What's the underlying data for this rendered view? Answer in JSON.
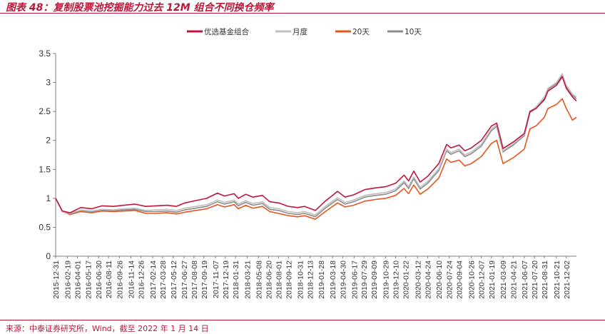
{
  "header": {
    "title": "图表 48：复制股票池挖掘能力过去 12M 组合不同换仓频率"
  },
  "footer": {
    "source": "来源：中泰证券研究所，Wind，截至 2022 年 1 月 14 日"
  },
  "chart_data": {
    "type": "line",
    "title": "",
    "xlabel": "",
    "ylabel": "",
    "ylim": [
      0,
      3.5
    ],
    "yticks": [
      "0",
      "0.5",
      "1",
      "1.5",
      "2",
      "2.5",
      "3",
      "3.5"
    ],
    "x_range": [
      "2015-12-31",
      "2022-01-14"
    ],
    "xticks": [
      "2015-12-31",
      "2016-02-19",
      "2016-04-01",
      "2016-05-17",
      "2016-06-30",
      "2016-08-11",
      "2016-09-26",
      "2016-11-14",
      "2016-12-26",
      "2017-02-14",
      "2017-03-28",
      "2017-05-12",
      "2017-06-27",
      "2017-08-08",
      "2017-09-19",
      "2017-11-07",
      "2017-12-19",
      "2018-01-31",
      "2018-03-21",
      "2018-05-08",
      "2018-06-20",
      "2018-08-01",
      "2018-09-12",
      "2018-10-31",
      "2018-12-13",
      "2019-01-28",
      "2019-03-18",
      "2019-04-30",
      "2019-06-17",
      "2019-07-29",
      "2019-09-09",
      "2019-10-29",
      "2019-12-10",
      "2020-01-22",
      "2020-03-12",
      "2020-04-24",
      "2020-06-10",
      "2020-07-24",
      "2020-09-04",
      "2020-10-26",
      "2020-12-07",
      "2021-01-19",
      "2021-03-09",
      "2021-04-21",
      "2021-06-07",
      "2021-07-20",
      "2021-08-31",
      "2021-10-21",
      "2021-12-02"
    ],
    "grid": false,
    "legend_position": "top-center",
    "series": [
      {
        "name": "优选基金组合",
        "color": "#c0143c",
        "points": [
          [
            "2015-12-31",
            1.0
          ],
          [
            "2016-01-28",
            0.78
          ],
          [
            "2016-03-01",
            0.75
          ],
          [
            "2016-04-15",
            0.84
          ],
          [
            "2016-06-01",
            0.82
          ],
          [
            "2016-07-15",
            0.87
          ],
          [
            "2016-09-01",
            0.86
          ],
          [
            "2016-10-15",
            0.88
          ],
          [
            "2016-11-30",
            0.9
          ],
          [
            "2017-01-16",
            0.86
          ],
          [
            "2017-03-01",
            0.87
          ],
          [
            "2017-04-15",
            0.88
          ],
          [
            "2017-05-25",
            0.86
          ],
          [
            "2017-07-01",
            0.92
          ],
          [
            "2017-08-15",
            0.96
          ],
          [
            "2017-10-01",
            1.0
          ],
          [
            "2017-11-15",
            1.09
          ],
          [
            "2017-12-15",
            1.04
          ],
          [
            "2018-01-25",
            1.08
          ],
          [
            "2018-02-12",
            1.0
          ],
          [
            "2018-03-15",
            1.07
          ],
          [
            "2018-04-15",
            1.02
          ],
          [
            "2018-05-25",
            1.05
          ],
          [
            "2018-06-25",
            0.94
          ],
          [
            "2018-08-01",
            0.92
          ],
          [
            "2018-09-12",
            0.86
          ],
          [
            "2018-10-20",
            0.84
          ],
          [
            "2018-11-20",
            0.86
          ],
          [
            "2019-01-04",
            0.79
          ],
          [
            "2019-02-15",
            0.95
          ],
          [
            "2019-04-08",
            1.12
          ],
          [
            "2019-05-10",
            1.02
          ],
          [
            "2019-06-15",
            1.06
          ],
          [
            "2019-08-01",
            1.15
          ],
          [
            "2019-09-15",
            1.18
          ],
          [
            "2019-10-29",
            1.2
          ],
          [
            "2019-12-10",
            1.26
          ],
          [
            "2020-01-15",
            1.4
          ],
          [
            "2020-02-03",
            1.3
          ],
          [
            "2020-02-25",
            1.47
          ],
          [
            "2020-03-23",
            1.28
          ],
          [
            "2020-04-24",
            1.38
          ],
          [
            "2020-06-10",
            1.6
          ],
          [
            "2020-07-13",
            1.93
          ],
          [
            "2020-07-31",
            1.87
          ],
          [
            "2020-09-04",
            1.92
          ],
          [
            "2020-09-28",
            1.82
          ],
          [
            "2020-10-26",
            1.87
          ],
          [
            "2020-12-07",
            2.0
          ],
          [
            "2021-01-19",
            2.25
          ],
          [
            "2021-02-10",
            2.3
          ],
          [
            "2021-03-09",
            1.86
          ],
          [
            "2021-04-21",
            1.97
          ],
          [
            "2021-06-07",
            2.12
          ],
          [
            "2021-07-01",
            2.5
          ],
          [
            "2021-07-27",
            2.55
          ],
          [
            "2021-08-31",
            2.7
          ],
          [
            "2021-09-15",
            2.85
          ],
          [
            "2021-10-21",
            2.95
          ],
          [
            "2021-11-15",
            3.1
          ],
          [
            "2021-12-02",
            2.9
          ],
          [
            "2021-12-28",
            2.75
          ],
          [
            "2022-01-14",
            2.68
          ]
        ]
      },
      {
        "name": "月度",
        "color": "#bfbfbf",
        "points": [
          [
            "2015-12-31",
            1.0
          ],
          [
            "2016-01-28",
            0.78
          ],
          [
            "2016-03-01",
            0.74
          ],
          [
            "2016-04-15",
            0.8
          ],
          [
            "2016-06-01",
            0.78
          ],
          [
            "2016-07-15",
            0.81
          ],
          [
            "2016-09-01",
            0.8
          ],
          [
            "2016-10-15",
            0.82
          ],
          [
            "2016-11-30",
            0.83
          ],
          [
            "2017-01-16",
            0.79
          ],
          [
            "2017-03-01",
            0.8
          ],
          [
            "2017-04-15",
            0.81
          ],
          [
            "2017-05-25",
            0.79
          ],
          [
            "2017-07-01",
            0.83
          ],
          [
            "2017-08-15",
            0.86
          ],
          [
            "2017-10-01",
            0.89
          ],
          [
            "2017-11-15",
            0.97
          ],
          [
            "2017-12-15",
            0.93
          ],
          [
            "2018-01-25",
            0.97
          ],
          [
            "2018-02-12",
            0.9
          ],
          [
            "2018-03-15",
            0.96
          ],
          [
            "2018-04-15",
            0.91
          ],
          [
            "2018-05-25",
            0.94
          ],
          [
            "2018-06-25",
            0.84
          ],
          [
            "2018-08-01",
            0.82
          ],
          [
            "2018-09-12",
            0.77
          ],
          [
            "2018-10-20",
            0.75
          ],
          [
            "2018-11-20",
            0.77
          ],
          [
            "2019-01-04",
            0.71
          ],
          [
            "2019-02-15",
            0.86
          ],
          [
            "2019-04-08",
            1.01
          ],
          [
            "2019-05-10",
            0.93
          ],
          [
            "2019-06-15",
            0.97
          ],
          [
            "2019-08-01",
            1.05
          ],
          [
            "2019-09-15",
            1.08
          ],
          [
            "2019-10-29",
            1.1
          ],
          [
            "2019-12-10",
            1.16
          ],
          [
            "2020-01-15",
            1.3
          ],
          [
            "2020-02-03",
            1.2
          ],
          [
            "2020-02-25",
            1.37
          ],
          [
            "2020-03-23",
            1.19
          ],
          [
            "2020-04-24",
            1.29
          ],
          [
            "2020-06-10",
            1.51
          ],
          [
            "2020-07-13",
            1.85
          ],
          [
            "2020-07-31",
            1.79
          ],
          [
            "2020-09-04",
            1.85
          ],
          [
            "2020-09-28",
            1.75
          ],
          [
            "2020-10-26",
            1.8
          ],
          [
            "2020-12-07",
            1.93
          ],
          [
            "2021-01-19",
            2.2
          ],
          [
            "2021-02-10",
            2.27
          ],
          [
            "2021-03-09",
            1.82
          ],
          [
            "2021-04-21",
            1.94
          ],
          [
            "2021-06-07",
            2.1
          ],
          [
            "2021-07-01",
            2.5
          ],
          [
            "2021-07-27",
            2.58
          ],
          [
            "2021-08-31",
            2.75
          ],
          [
            "2021-09-15",
            2.9
          ],
          [
            "2021-10-21",
            3.0
          ],
          [
            "2021-11-15",
            3.15
          ],
          [
            "2021-12-02",
            2.95
          ],
          [
            "2021-12-28",
            2.8
          ],
          [
            "2022-01-14",
            2.75
          ]
        ]
      },
      {
        "name": "20天",
        "color": "#e8541e",
        "points": [
          [
            "2015-12-31",
            1.0
          ],
          [
            "2016-01-28",
            0.78
          ],
          [
            "2016-03-01",
            0.72
          ],
          [
            "2016-04-15",
            0.77
          ],
          [
            "2016-06-01",
            0.75
          ],
          [
            "2016-07-15",
            0.78
          ],
          [
            "2016-09-01",
            0.77
          ],
          [
            "2016-10-15",
            0.78
          ],
          [
            "2016-11-30",
            0.79
          ],
          [
            "2017-01-16",
            0.74
          ],
          [
            "2017-03-01",
            0.74
          ],
          [
            "2017-04-15",
            0.75
          ],
          [
            "2017-05-25",
            0.73
          ],
          [
            "2017-07-01",
            0.76
          ],
          [
            "2017-08-15",
            0.79
          ],
          [
            "2017-10-01",
            0.82
          ],
          [
            "2017-11-15",
            0.89
          ],
          [
            "2017-12-15",
            0.85
          ],
          [
            "2018-01-25",
            0.89
          ],
          [
            "2018-02-12",
            0.82
          ],
          [
            "2018-03-15",
            0.88
          ],
          [
            "2018-04-15",
            0.83
          ],
          [
            "2018-05-25",
            0.86
          ],
          [
            "2018-06-25",
            0.77
          ],
          [
            "2018-08-01",
            0.74
          ],
          [
            "2018-09-12",
            0.7
          ],
          [
            "2018-10-20",
            0.68
          ],
          [
            "2018-11-20",
            0.7
          ],
          [
            "2019-01-04",
            0.64
          ],
          [
            "2019-02-15",
            0.77
          ],
          [
            "2019-04-08",
            0.92
          ],
          [
            "2019-05-10",
            0.85
          ],
          [
            "2019-06-15",
            0.88
          ],
          [
            "2019-08-01",
            0.95
          ],
          [
            "2019-09-15",
            0.98
          ],
          [
            "2019-10-29",
            1.0
          ],
          [
            "2019-12-10",
            1.05
          ],
          [
            "2020-01-15",
            1.17
          ],
          [
            "2020-02-03",
            1.08
          ],
          [
            "2020-02-25",
            1.23
          ],
          [
            "2020-03-23",
            1.07
          ],
          [
            "2020-04-24",
            1.16
          ],
          [
            "2020-06-10",
            1.35
          ],
          [
            "2020-07-13",
            1.68
          ],
          [
            "2020-07-31",
            1.62
          ],
          [
            "2020-09-04",
            1.66
          ],
          [
            "2020-09-28",
            1.56
          ],
          [
            "2020-10-26",
            1.6
          ],
          [
            "2020-12-07",
            1.72
          ],
          [
            "2021-01-19",
            1.95
          ],
          [
            "2021-02-10",
            2.0
          ],
          [
            "2021-03-09",
            1.6
          ],
          [
            "2021-04-21",
            1.7
          ],
          [
            "2021-06-07",
            1.85
          ],
          [
            "2021-07-01",
            2.2
          ],
          [
            "2021-07-27",
            2.25
          ],
          [
            "2021-08-31",
            2.4
          ],
          [
            "2021-09-15",
            2.55
          ],
          [
            "2021-10-21",
            2.62
          ],
          [
            "2021-11-15",
            2.72
          ],
          [
            "2021-12-02",
            2.55
          ],
          [
            "2021-12-28",
            2.35
          ],
          [
            "2022-01-14",
            2.4
          ]
        ]
      },
      {
        "name": "10天",
        "color": "#8c8c8c",
        "points": [
          [
            "2015-12-31",
            1.0
          ],
          [
            "2016-01-28",
            0.78
          ],
          [
            "2016-03-01",
            0.73
          ],
          [
            "2016-04-15",
            0.79
          ],
          [
            "2016-06-01",
            0.77
          ],
          [
            "2016-07-15",
            0.8
          ],
          [
            "2016-09-01",
            0.79
          ],
          [
            "2016-10-15",
            0.8
          ],
          [
            "2016-11-30",
            0.81
          ],
          [
            "2017-01-16",
            0.77
          ],
          [
            "2017-03-01",
            0.77
          ],
          [
            "2017-04-15",
            0.78
          ],
          [
            "2017-05-25",
            0.76
          ],
          [
            "2017-07-01",
            0.8
          ],
          [
            "2017-08-15",
            0.83
          ],
          [
            "2017-10-01",
            0.86
          ],
          [
            "2017-11-15",
            0.94
          ],
          [
            "2017-12-15",
            0.9
          ],
          [
            "2018-01-25",
            0.94
          ],
          [
            "2018-02-12",
            0.87
          ],
          [
            "2018-03-15",
            0.93
          ],
          [
            "2018-04-15",
            0.88
          ],
          [
            "2018-05-25",
            0.91
          ],
          [
            "2018-06-25",
            0.81
          ],
          [
            "2018-08-01",
            0.79
          ],
          [
            "2018-09-12",
            0.74
          ],
          [
            "2018-10-20",
            0.72
          ],
          [
            "2018-11-20",
            0.74
          ],
          [
            "2019-01-04",
            0.68
          ],
          [
            "2019-02-15",
            0.83
          ],
          [
            "2019-04-08",
            0.98
          ],
          [
            "2019-05-10",
            0.9
          ],
          [
            "2019-06-15",
            0.94
          ],
          [
            "2019-08-01",
            1.02
          ],
          [
            "2019-09-15",
            1.05
          ],
          [
            "2019-10-29",
            1.07
          ],
          [
            "2019-12-10",
            1.13
          ],
          [
            "2020-01-15",
            1.27
          ],
          [
            "2020-02-03",
            1.17
          ],
          [
            "2020-02-25",
            1.34
          ],
          [
            "2020-03-23",
            1.16
          ],
          [
            "2020-04-24",
            1.26
          ],
          [
            "2020-06-10",
            1.48
          ],
          [
            "2020-07-13",
            1.82
          ],
          [
            "2020-07-31",
            1.76
          ],
          [
            "2020-09-04",
            1.82
          ],
          [
            "2020-09-28",
            1.72
          ],
          [
            "2020-10-26",
            1.77
          ],
          [
            "2020-12-07",
            1.9
          ],
          [
            "2021-01-19",
            2.17
          ],
          [
            "2021-02-10",
            2.24
          ],
          [
            "2021-03-09",
            1.8
          ],
          [
            "2021-04-21",
            1.92
          ],
          [
            "2021-06-07",
            2.08
          ],
          [
            "2021-07-01",
            2.48
          ],
          [
            "2021-07-27",
            2.56
          ],
          [
            "2021-08-31",
            2.72
          ],
          [
            "2021-09-15",
            2.88
          ],
          [
            "2021-10-21",
            2.98
          ],
          [
            "2021-11-15",
            3.12
          ],
          [
            "2021-12-02",
            2.93
          ],
          [
            "2021-12-28",
            2.78
          ],
          [
            "2022-01-14",
            2.72
          ]
        ]
      }
    ]
  }
}
